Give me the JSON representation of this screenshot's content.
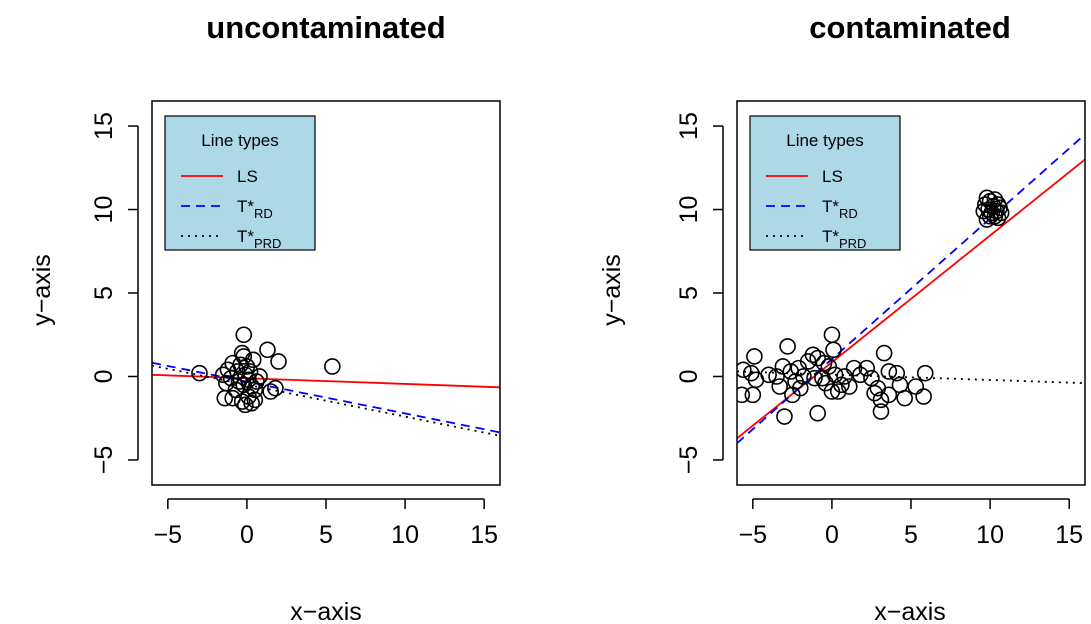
{
  "chart_data": [
    {
      "type": "scatter",
      "title": "uncontaminated",
      "xlabel": "x−axis",
      "ylabel": "y−axis",
      "xlim": [
        -6,
        16
      ],
      "ylim": [
        -6.5,
        16.5
      ],
      "xticks": [
        -5,
        0,
        5,
        10,
        15
      ],
      "yticks": [
        -5,
        0,
        5,
        10,
        15
      ],
      "legend": {
        "title": "Line types",
        "position": "top-left",
        "background": "#add8e6",
        "entries": [
          {
            "label": "LS",
            "color": "#ff0000",
            "dash": "solid"
          },
          {
            "label": "T*",
            "sub": "RD",
            "color": "#0000ff",
            "dash": "dashed"
          },
          {
            "label": "T*",
            "sub": "PRD",
            "color": "#000000",
            "dash": "dotted"
          }
        ]
      },
      "points": [
        [
          -0.2,
          2.5
        ],
        [
          1.3,
          1.6
        ],
        [
          -0.3,
          1.4
        ],
        [
          -0.2,
          1.2
        ],
        [
          0.4,
          1.0
        ],
        [
          2.0,
          0.9
        ],
        [
          5.4,
          0.6
        ],
        [
          -0.9,
          0.8
        ],
        [
          -0.4,
          0.7
        ],
        [
          0.0,
          0.6
        ],
        [
          -1.2,
          0.4
        ],
        [
          -0.6,
          0.3
        ],
        [
          0.2,
          0.3
        ],
        [
          -3.0,
          0.2
        ],
        [
          -1.5,
          0.1
        ],
        [
          -0.1,
          0.1
        ],
        [
          0.8,
          0.0
        ],
        [
          -1.0,
          -0.1
        ],
        [
          0.1,
          -0.2
        ],
        [
          -0.5,
          -0.3
        ],
        [
          0.6,
          -0.3
        ],
        [
          -1.3,
          -0.4
        ],
        [
          -0.2,
          -0.5
        ],
        [
          0.3,
          -0.6
        ],
        [
          1.8,
          -0.7
        ],
        [
          -0.7,
          -0.8
        ],
        [
          0.5,
          -0.8
        ],
        [
          1.5,
          -0.9
        ],
        [
          -1.4,
          -1.3
        ],
        [
          -0.9,
          -1.3
        ],
        [
          0.1,
          -1.2
        ],
        [
          0.5,
          -1.4
        ],
        [
          -0.3,
          -1.5
        ],
        [
          -0.1,
          -1.7
        ],
        [
          0.3,
          -1.6
        ]
      ],
      "lines": [
        {
          "name": "LS",
          "from": [
            -6,
            0.1
          ],
          "to": [
            16,
            -0.65
          ]
        },
        {
          "name": "T*RD",
          "from": [
            -6,
            0.82
          ],
          "to": [
            16,
            -3.35
          ]
        },
        {
          "name": "T*PRD",
          "from": [
            -6,
            0.65
          ],
          "to": [
            16,
            -3.55
          ]
        }
      ]
    },
    {
      "type": "scatter",
      "title": "contaminated",
      "xlabel": "x−axis",
      "ylabel": "y−axis",
      "xlim": [
        -6,
        16
      ],
      "ylim": [
        -6.5,
        16.5
      ],
      "xticks": [
        -5,
        0,
        5,
        10,
        15
      ],
      "yticks": [
        -5,
        0,
        5,
        10,
        15
      ],
      "legend": {
        "title": "Line types",
        "position": "top-left",
        "background": "#add8e6",
        "entries": [
          {
            "label": "LS",
            "color": "#ff0000",
            "dash": "solid"
          },
          {
            "label": "T*",
            "sub": "RD",
            "color": "#0000ff",
            "dash": "dashed"
          },
          {
            "label": "T*",
            "sub": "PRD",
            "color": "#000000",
            "dash": "dotted"
          }
        ]
      },
      "points": [
        [
          0.0,
          2.5
        ],
        [
          -2.8,
          1.8
        ],
        [
          0.1,
          1.6
        ],
        [
          -4.9,
          1.2
        ],
        [
          -1.2,
          1.3
        ],
        [
          -0.9,
          1.1
        ],
        [
          3.3,
          1.4
        ],
        [
          -1.5,
          0.9
        ],
        [
          -0.5,
          0.8
        ],
        [
          -0.2,
          0.6
        ],
        [
          -3.1,
          0.6
        ],
        [
          -2.1,
          0.5
        ],
        [
          -2.6,
          0.3
        ],
        [
          1.4,
          0.5
        ],
        [
          2.2,
          0.5
        ],
        [
          3.6,
          0.3
        ],
        [
          4.1,
          0.2
        ],
        [
          5.9,
          0.2
        ],
        [
          -5.1,
          0.2
        ],
        [
          -5.6,
          0.4
        ],
        [
          -4.0,
          0.1
        ],
        [
          -3.5,
          0.0
        ],
        [
          -1.8,
          0.0
        ],
        [
          -1.1,
          -0.1
        ],
        [
          -0.6,
          -0.1
        ],
        [
          0.2,
          0.1
        ],
        [
          0.8,
          0.0
        ],
        [
          1.8,
          0.1
        ],
        [
          2.5,
          -0.1
        ],
        [
          -4.8,
          -0.2
        ],
        [
          -2.3,
          -0.3
        ],
        [
          -0.4,
          -0.4
        ],
        [
          0.6,
          -0.5
        ],
        [
          1.1,
          -0.6
        ],
        [
          2.9,
          -0.7
        ],
        [
          4.3,
          -0.5
        ],
        [
          5.3,
          -0.6
        ],
        [
          -3.3,
          -0.6
        ],
        [
          -2.0,
          -0.7
        ],
        [
          0.0,
          -0.9
        ],
        [
          0.4,
          -0.9
        ],
        [
          2.7,
          -1.0
        ],
        [
          3.6,
          -1.1
        ],
        [
          -5.0,
          -1.1
        ],
        [
          -5.7,
          -1.1
        ],
        [
          -2.5,
          -1.1
        ],
        [
          3.1,
          -1.4
        ],
        [
          4.6,
          -1.3
        ],
        [
          5.8,
          -1.2
        ],
        [
          -3.0,
          -2.4
        ],
        [
          -0.9,
          -2.2
        ],
        [
          3.1,
          -2.1
        ],
        [
          9.8,
          10.7
        ],
        [
          10.3,
          10.6
        ],
        [
          10.0,
          10.5
        ],
        [
          10.5,
          10.3
        ],
        [
          9.7,
          10.3
        ],
        [
          10.2,
          10.2
        ],
        [
          10.6,
          10.1
        ],
        [
          9.9,
          10.0
        ],
        [
          10.4,
          9.9
        ],
        [
          9.6,
          9.9
        ],
        [
          10.1,
          9.8
        ],
        [
          10.7,
          9.8
        ],
        [
          10.0,
          9.6
        ],
        [
          10.3,
          9.6
        ],
        [
          9.8,
          9.4
        ],
        [
          10.5,
          9.5
        ]
      ],
      "lines": [
        {
          "name": "LS",
          "from": [
            -6,
            -3.7
          ],
          "to": [
            16,
            13.0
          ]
        },
        {
          "name": "T*RD",
          "from": [
            -6,
            -4.0
          ],
          "to": [
            16,
            14.5
          ]
        },
        {
          "name": "T*PRD",
          "from": [
            -6,
            0.3
          ],
          "to": [
            16,
            -0.4
          ]
        }
      ]
    }
  ]
}
